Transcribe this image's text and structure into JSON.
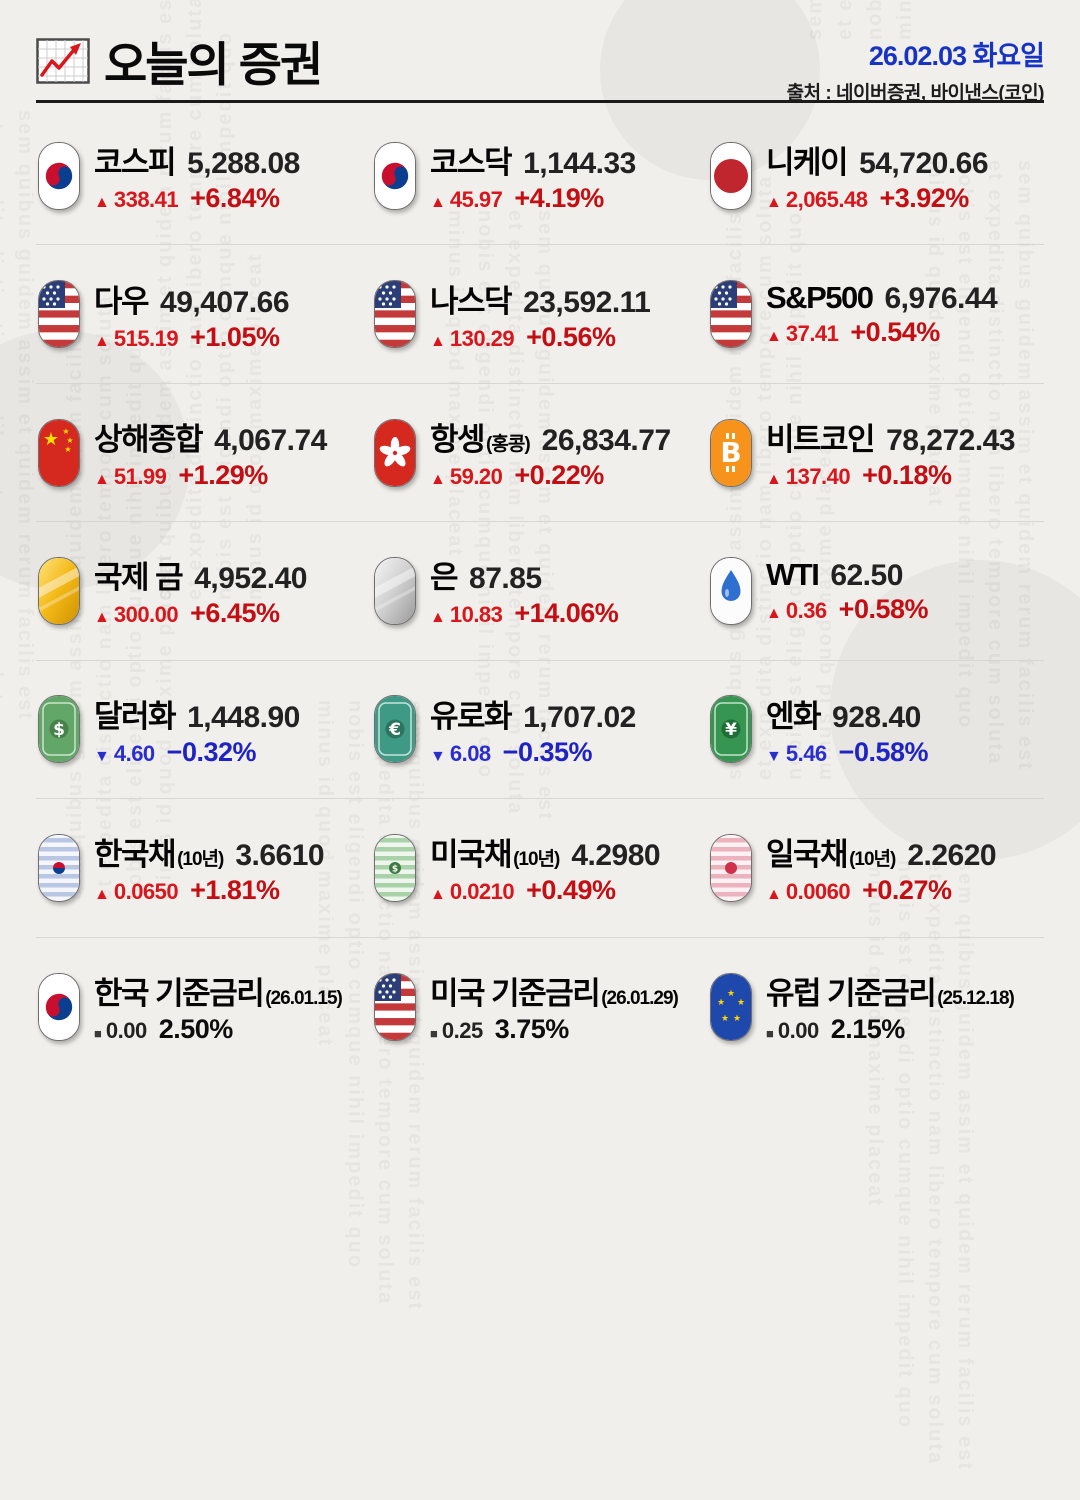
{
  "header": {
    "title": "오늘의 증권",
    "date": "26.02.03 화요일",
    "source": "출처 : 네이버증권, 바이낸스(코인)"
  },
  "colors": {
    "up": "#d8161b",
    "up_strong": "#c30f14",
    "down": "#2a2dd0",
    "down_strong": "#1f23c4",
    "date": "#1633c4"
  },
  "items": [
    {
      "name": "코스피",
      "suffix": "",
      "value": "5,288.08",
      "arrow": "▲",
      "change": "338.41",
      "pct": "+6.84%",
      "dir": "up",
      "icon": "korea-flag"
    },
    {
      "name": "코스닥",
      "suffix": "",
      "value": "1,144.33",
      "arrow": "▲",
      "change": "45.97",
      "pct": "+4.19%",
      "dir": "up",
      "icon": "korea-flag"
    },
    {
      "name": "니케이",
      "suffix": "",
      "value": "54,720.66",
      "arrow": "▲",
      "change": "2,065.48",
      "pct": "+3.92%",
      "dir": "up",
      "icon": "japan-flag"
    },
    {
      "name": "다우",
      "suffix": "",
      "value": "49,407.66",
      "arrow": "▲",
      "change": "515.19",
      "pct": "+1.05%",
      "dir": "up",
      "icon": "us-flag"
    },
    {
      "name": "나스닥",
      "suffix": "",
      "value": "23,592.11",
      "arrow": "▲",
      "change": "130.29",
      "pct": "+0.56%",
      "dir": "up",
      "icon": "us-flag"
    },
    {
      "name": "S&P500",
      "suffix": "",
      "value": "6,976.44",
      "arrow": "▲",
      "change": "37.41",
      "pct": "+0.54%",
      "dir": "up",
      "icon": "us-flag"
    },
    {
      "name": "상해종합",
      "suffix": "",
      "value": "4,067.74",
      "arrow": "▲",
      "change": "51.99",
      "pct": "+1.29%",
      "dir": "up",
      "icon": "china-flag"
    },
    {
      "name": "항셍",
      "suffix": "(홍콩)",
      "value": "26,834.77",
      "arrow": "▲",
      "change": "59.20",
      "pct": "+0.22%",
      "dir": "up",
      "icon": "hongkong-flag"
    },
    {
      "name": "비트코인",
      "suffix": "",
      "value": "78,272.43",
      "arrow": "▲",
      "change": "137.40",
      "pct": "+0.18%",
      "dir": "up",
      "icon": "bitcoin"
    },
    {
      "name": "국제 금",
      "suffix": "",
      "value": "4,952.40",
      "arrow": "▲",
      "change": "300.00",
      "pct": "+6.45%",
      "dir": "up",
      "icon": "gold-bar"
    },
    {
      "name": "은",
      "suffix": "",
      "value": "87.85",
      "arrow": "▲",
      "change": "10.83",
      "pct": "+14.06%",
      "dir": "up",
      "icon": "silver-bar"
    },
    {
      "name": "WTI",
      "suffix": "",
      "value": "62.50",
      "arrow": "▲",
      "change": "0.36",
      "pct": "+0.58%",
      "dir": "up",
      "icon": "oil-drop"
    },
    {
      "name": "달러화",
      "suffix": "",
      "value": "1,448.90",
      "arrow": "▼",
      "change": "4.60",
      "pct": "−0.32%",
      "dir": "down",
      "icon": "dollar-bill"
    },
    {
      "name": "유로화",
      "suffix": "",
      "value": "1,707.02",
      "arrow": "▼",
      "change": "6.08",
      "pct": "−0.35%",
      "dir": "down",
      "icon": "euro-bill"
    },
    {
      "name": "엔화",
      "suffix": "",
      "value": "928.40",
      "arrow": "▼",
      "change": "5.46",
      "pct": "−0.58%",
      "dir": "down",
      "icon": "yen-bill"
    },
    {
      "name": "한국채",
      "suffix": "(10년)",
      "value": "3.6610",
      "arrow": "▲",
      "change": "0.0650",
      "pct": "+1.81%",
      "dir": "up",
      "icon": "korea-bond"
    },
    {
      "name": "미국채",
      "suffix": "(10년)",
      "value": "4.2980",
      "arrow": "▲",
      "change": "0.0210",
      "pct": "+0.49%",
      "dir": "up",
      "icon": "us-bond"
    },
    {
      "name": "일국채",
      "suffix": "(10년)",
      "value": "2.2620",
      "arrow": "▲",
      "change": "0.0060",
      "pct": "+0.27%",
      "dir": "up",
      "icon": "japan-bond"
    },
    {
      "name": "한국 기준금리",
      "suffix": "(26.01.15)",
      "value": "",
      "arrow": "■",
      "change": "0.00",
      "pct": "2.50%",
      "dir": "flat",
      "icon": "korea-flag"
    },
    {
      "name": "미국 기준금리",
      "suffix": "(26.01.29)",
      "value": "",
      "arrow": "■",
      "change": "0.25",
      "pct": "3.75%",
      "dir": "flat",
      "icon": "us-flag"
    },
    {
      "name": "유럽 기준금리",
      "suffix": "(25.12.18)",
      "value": "",
      "arrow": "■",
      "change": "0.00",
      "pct": "2.15%",
      "dir": "flat",
      "icon": "eu-flag"
    }
  ],
  "decor": {
    "watermark": "sem quibus guidem assim et quidem rerum facilis est et expedita distinctio nam libero tempore cum soluta nobis est eligendi optio cumque nihil impedit quo minus id quod maxime placeat"
  }
}
